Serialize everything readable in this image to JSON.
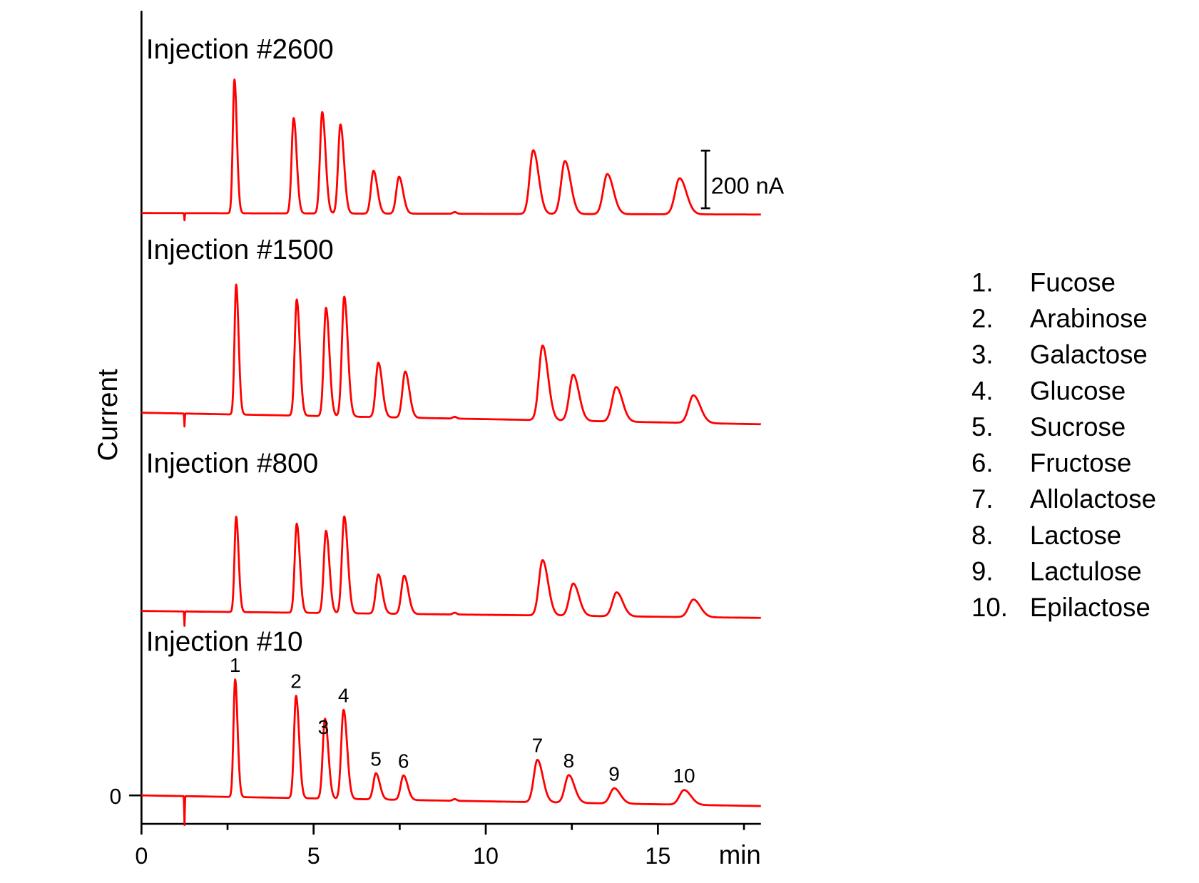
{
  "chart_data": {
    "type": "line",
    "title": "",
    "xlabel": "min",
    "ylabel": "Current",
    "xlim": [
      0,
      18
    ],
    "x_ticks": [
      "0",
      "5",
      "10",
      "15"
    ],
    "y_tick_label": "0",
    "scale_bar": {
      "label": "200 nA",
      "value_nA": 200
    },
    "series": [
      {
        "name": "Injection #2600",
        "offset_nA": 2021,
        "drift_nA": 5,
        "dip_nA": 25,
        "peaks": [
          [
            2.7,
            464
          ],
          [
            4.42,
            331
          ],
          [
            5.25,
            352
          ],
          [
            5.78,
            309
          ],
          [
            6.74,
            149
          ],
          [
            7.48,
            128
          ],
          [
            11.38,
            221
          ],
          [
            12.3,
            184
          ],
          [
            13.53,
            139
          ],
          [
            15.63,
            125
          ]
        ]
      },
      {
        "name": "Injection #1500",
        "offset_nA": 1328,
        "drift_nA": 40,
        "dip_nA": 45,
        "peaks": [
          [
            2.75,
            451
          ],
          [
            4.51,
            403
          ],
          [
            5.36,
            376
          ],
          [
            5.89,
            416
          ],
          [
            6.88,
            189
          ],
          [
            7.66,
            160
          ],
          [
            11.65,
            259
          ],
          [
            12.54,
            160
          ],
          [
            13.79,
            120
          ],
          [
            16.03,
            96
          ]
        ]
      },
      {
        "name": "Injection #800",
        "offset_nA": 640,
        "drift_nA": 24,
        "dip_nA": 50,
        "peaks": [
          [
            2.75,
            331
          ],
          [
            4.51,
            309
          ],
          [
            5.36,
            285
          ],
          [
            5.89,
            336
          ],
          [
            6.88,
            136
          ],
          [
            7.63,
            133
          ],
          [
            11.65,
            192
          ],
          [
            12.54,
            112
          ],
          [
            13.8,
            83
          ],
          [
            16.03,
            61
          ]
        ]
      },
      {
        "name": "Injection #10",
        "offset_nA": 0,
        "drift_nA": 37,
        "dip_nA": 100,
        "peaks": [
          [
            2.72,
            408
          ],
          [
            4.49,
            355
          ],
          [
            5.33,
            277
          ],
          [
            5.87,
            309
          ],
          [
            6.81,
            91
          ],
          [
            7.61,
            85
          ],
          [
            11.5,
            147
          ],
          [
            12.41,
            96
          ],
          [
            13.73,
            53
          ],
          [
            15.76,
            51
          ]
        ]
      }
    ],
    "peak_labels": [
      "1",
      "2",
      "3",
      "4",
      "5",
      "6",
      "7",
      "8",
      "9",
      "10"
    ],
    "legend": [
      {
        "num": "1.",
        "name": "Fucose"
      },
      {
        "num": "2.",
        "name": "Arabinose"
      },
      {
        "num": "3.",
        "name": "Galactose"
      },
      {
        "num": "4.",
        "name": "Glucose"
      },
      {
        "num": "5.",
        "name": "Sucrose"
      },
      {
        "num": "6.",
        "name": "Fructose"
      },
      {
        "num": "7.",
        "name": "Allolactose"
      },
      {
        "num": "8.",
        "name": "Lactose"
      },
      {
        "num": "9.",
        "name": "Lactulose"
      },
      {
        "num": "10.",
        "name": "Epilactose"
      }
    ],
    "line_color": "#ff0000"
  }
}
